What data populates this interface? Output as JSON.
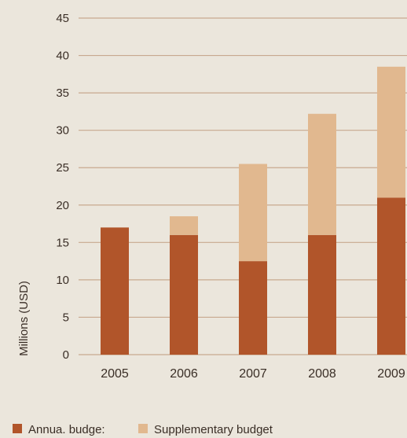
{
  "chart_data": {
    "type": "bar",
    "stacked": true,
    "ylabel": "Millions (USD)",
    "xlabel": "",
    "categories": [
      "2005",
      "2006",
      "2007",
      "2008",
      "2009"
    ],
    "series": [
      {
        "name": "Annua. budge:",
        "values": [
          17,
          16,
          12.5,
          16,
          21
        ],
        "color": "#b1552a"
      },
      {
        "name": "Supplementary budget",
        "values": [
          0,
          2.5,
          13,
          16.2,
          17.5
        ],
        "color": "#e1b88f"
      }
    ],
    "ylim": [
      0,
      45
    ],
    "yticks": [
      "0",
      "5",
      "10",
      "15",
      "20",
      "25",
      "30",
      "35",
      "40",
      "45"
    ],
    "grid": true,
    "legend_position": "bottom-left"
  },
  "colors": {
    "background": "#ebe6dc",
    "gridline": "#c8a98f",
    "axis_text": "#3a2e26"
  }
}
